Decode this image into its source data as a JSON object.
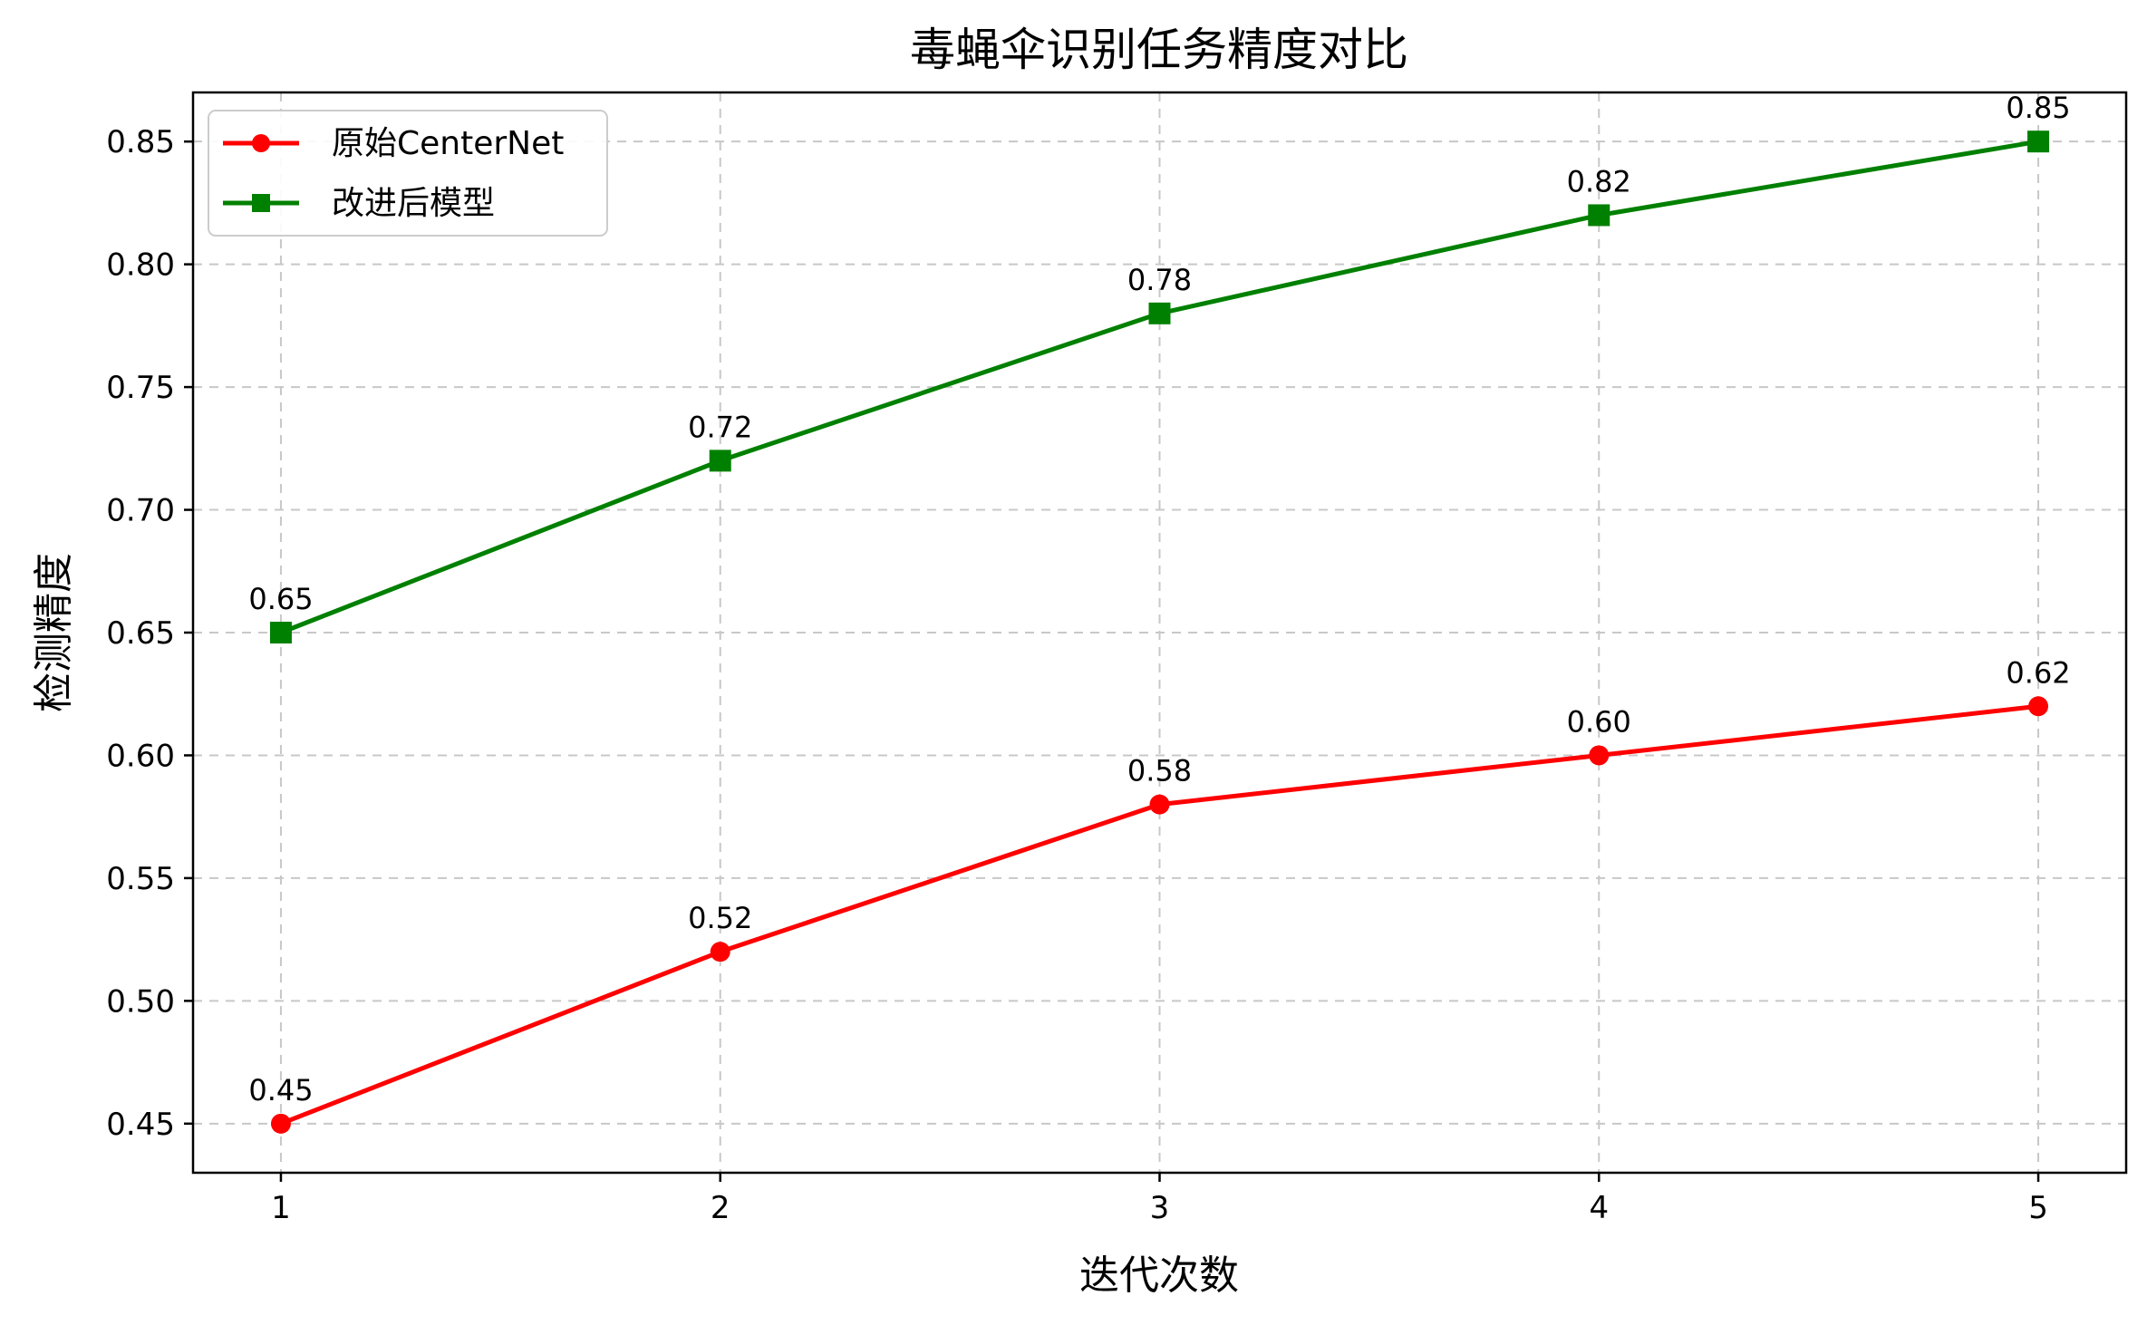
{
  "chart_data": {
    "type": "line",
    "title": "毒蝇伞识别任务精度对比",
    "xlabel": "迭代次数",
    "ylabel": "检测精度",
    "x": [
      1,
      2,
      3,
      4,
      5
    ],
    "x_tick_labels": [
      "1",
      "2",
      "3",
      "4",
      "5"
    ],
    "y_tick_labels": [
      "0.45",
      "0.50",
      "0.55",
      "0.60",
      "0.65",
      "0.70",
      "0.75",
      "0.80",
      "0.85"
    ],
    "y_ticks": [
      0.45,
      0.5,
      0.55,
      0.6,
      0.65,
      0.7,
      0.75,
      0.8,
      0.85
    ],
    "xlim": [
      0.8,
      5.2
    ],
    "ylim": [
      0.43,
      0.87
    ],
    "grid": true,
    "legend_position": "top-left",
    "series": [
      {
        "name": "原始CenterNet",
        "color": "#ff0000",
        "marker": "circle",
        "values": [
          0.45,
          0.52,
          0.58,
          0.6,
          0.62
        ],
        "labels": [
          "0.45",
          "0.52",
          "0.58",
          "0.60",
          "0.62"
        ]
      },
      {
        "name": "改进后模型",
        "color": "#008000",
        "marker": "square",
        "values": [
          0.65,
          0.72,
          0.78,
          0.82,
          0.85
        ],
        "labels": [
          "0.65",
          "0.72",
          "0.78",
          "0.82",
          "0.85"
        ]
      }
    ]
  }
}
